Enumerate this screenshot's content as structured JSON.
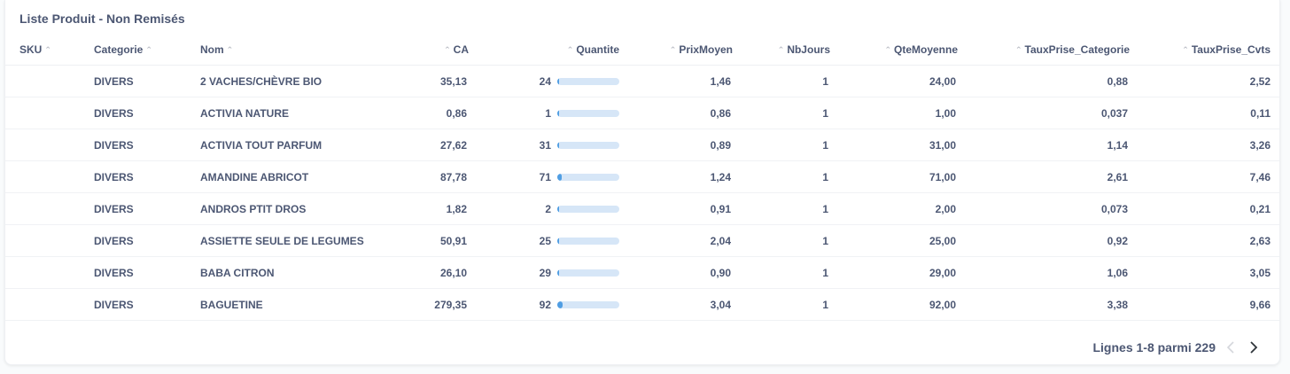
{
  "card": {
    "title": "Liste Produit - Non Remisés"
  },
  "columns": [
    {
      "key": "sku",
      "label": "SKU",
      "sort_icon": "chevron-up-icon"
    },
    {
      "key": "categorie",
      "label": "Categorie",
      "sort_icon": "chevron-up-icon"
    },
    {
      "key": "nom",
      "label": "Nom",
      "sort_icon": "chevron-up-icon"
    },
    {
      "key": "ca",
      "label": "CA",
      "sort_icon": "chevron-up-icon"
    },
    {
      "key": "quantite",
      "label": "Quantite",
      "sort_icon": "chevron-up-icon"
    },
    {
      "key": "prixmoyen",
      "label": "PrixMoyen",
      "sort_icon": "chevron-up-icon"
    },
    {
      "key": "nbjours",
      "label": "NbJours",
      "sort_icon": "chevron-up-icon"
    },
    {
      "key": "qtemoyenne",
      "label": "QteMoyenne",
      "sort_icon": "chevron-up-icon"
    },
    {
      "key": "tauxprise_categorie",
      "label": "TauxPrise_Categorie",
      "sort_icon": "chevron-up-icon"
    },
    {
      "key": "tauxprise_cvts",
      "label": "TauxPrise_Cvts",
      "sort_icon": "chevron-up-icon"
    }
  ],
  "quantite_bar": {
    "max": 1000,
    "track_color": "#d6e6f7",
    "fill_color": "#509ee3"
  },
  "rows": [
    {
      "sku": "",
      "categorie": "DIVERS",
      "nom": "2 VACHES/CHÈVRE BIO",
      "ca": "35,13",
      "quantite": "24",
      "quantite_value": 24,
      "prixmoyen": "1,46",
      "nbjours": "1",
      "qtemoyenne": "24,00",
      "tauxprise_categorie": "0,88",
      "tauxprise_cvts": "2,52"
    },
    {
      "sku": "",
      "categorie": "DIVERS",
      "nom": "ACTIVIA NATURE",
      "ca": "0,86",
      "quantite": "1",
      "quantite_value": 1,
      "prixmoyen": "0,86",
      "nbjours": "1",
      "qtemoyenne": "1,00",
      "tauxprise_categorie": "0,037",
      "tauxprise_cvts": "0,11"
    },
    {
      "sku": "",
      "categorie": "DIVERS",
      "nom": "ACTIVIA TOUT PARFUM",
      "ca": "27,62",
      "quantite": "31",
      "quantite_value": 31,
      "prixmoyen": "0,89",
      "nbjours": "1",
      "qtemoyenne": "31,00",
      "tauxprise_categorie": "1,14",
      "tauxprise_cvts": "3,26"
    },
    {
      "sku": "",
      "categorie": "DIVERS",
      "nom": "AMANDINE ABRICOT",
      "ca": "87,78",
      "quantite": "71",
      "quantite_value": 71,
      "prixmoyen": "1,24",
      "nbjours": "1",
      "qtemoyenne": "71,00",
      "tauxprise_categorie": "2,61",
      "tauxprise_cvts": "7,46"
    },
    {
      "sku": "",
      "categorie": "DIVERS",
      "nom": "ANDROS PTIT DROS",
      "ca": "1,82",
      "quantite": "2",
      "quantite_value": 2,
      "prixmoyen": "0,91",
      "nbjours": "1",
      "qtemoyenne": "2,00",
      "tauxprise_categorie": "0,073",
      "tauxprise_cvts": "0,21"
    },
    {
      "sku": "",
      "categorie": "DIVERS",
      "nom": "ASSIETTE SEULE DE LEGUMES",
      "ca": "50,91",
      "quantite": "25",
      "quantite_value": 25,
      "prixmoyen": "2,04",
      "nbjours": "1",
      "qtemoyenne": "25,00",
      "tauxprise_categorie": "0,92",
      "tauxprise_cvts": "2,63"
    },
    {
      "sku": "",
      "categorie": "DIVERS",
      "nom": "BABA CITRON",
      "ca": "26,10",
      "quantite": "29",
      "quantite_value": 29,
      "prixmoyen": "0,90",
      "nbjours": "1",
      "qtemoyenne": "29,00",
      "tauxprise_categorie": "1,06",
      "tauxprise_cvts": "3,05"
    },
    {
      "sku": "",
      "categorie": "DIVERS",
      "nom": "BAGUETINE",
      "ca": "279,35",
      "quantite": "92",
      "quantite_value": 92,
      "prixmoyen": "3,04",
      "nbjours": "1",
      "qtemoyenne": "92,00",
      "tauxprise_categorie": "3,38",
      "tauxprise_cvts": "9,66"
    }
  ],
  "pagination": {
    "label": "Lignes 1-8 parmi 229",
    "prev_icon": "chevron-left-icon",
    "next_icon": "chevron-right-icon",
    "prev_enabled": false,
    "next_enabled": true
  }
}
